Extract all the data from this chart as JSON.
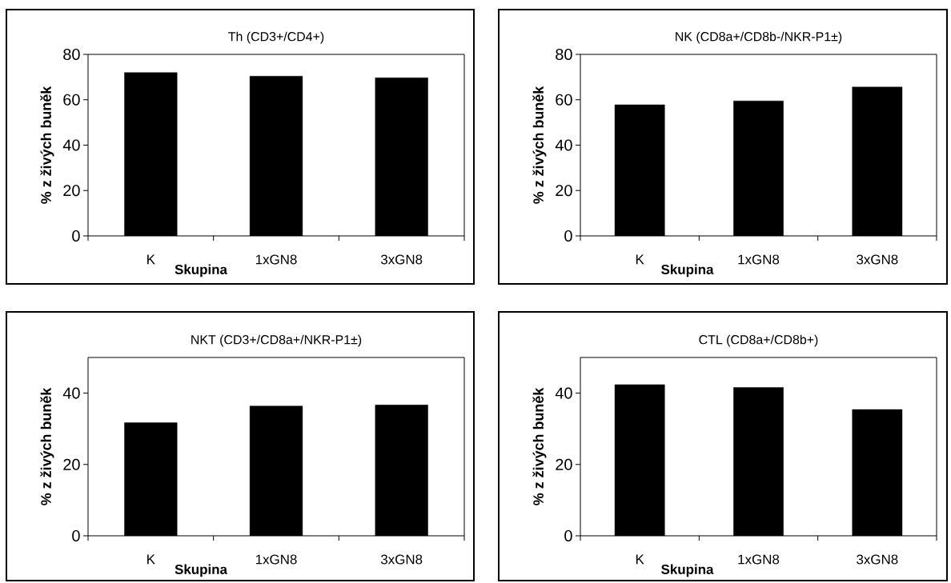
{
  "chart_data": [
    {
      "type": "bar",
      "title": "Th (CD3+/CD4+)",
      "xlabel": "Skupina",
      "ylabel": "% z živých buněk",
      "categories": [
        "K",
        "1xGN8",
        "3xGN8"
      ],
      "values": [
        72,
        70.4,
        69.7
      ],
      "color": "#000000",
      "ylim": [
        0,
        80
      ],
      "yticks": [
        0,
        20,
        40,
        60,
        80
      ]
    },
    {
      "type": "bar",
      "title": "NK (CD8a+/CD8b-/NKR-P1±)",
      "xlabel": "Skupina",
      "ylabel": "% z živých buněk",
      "categories": [
        "K",
        "1xGN8",
        "3xGN8"
      ],
      "values": [
        57.8,
        59.5,
        65.6
      ],
      "color": "#000000",
      "ylim": [
        0,
        80
      ],
      "yticks": [
        0,
        20,
        40,
        60,
        80
      ]
    },
    {
      "type": "bar",
      "title": "NKT (CD3+/CD8a+/NKR-P1±)",
      "xlabel": "Skupina",
      "ylabel": "% z živých buněk",
      "categories": [
        "K",
        "1xGN8",
        "3xGN8"
      ],
      "values": [
        31.7,
        36.4,
        36.7
      ],
      "color": "#000000",
      "ylim": [
        0,
        50
      ],
      "yticks": [
        0,
        20,
        40
      ]
    },
    {
      "type": "bar",
      "title": "CTL (CD8a+/CD8b+)",
      "xlabel": "Skupina",
      "ylabel": "% z živých buněk",
      "categories": [
        "K",
        "1xGN8",
        "3xGN8"
      ],
      "values": [
        42.4,
        41.6,
        35.4
      ],
      "color": "#000000",
      "ylim": [
        0,
        50
      ],
      "yticks": [
        0,
        20,
        40
      ]
    }
  ]
}
